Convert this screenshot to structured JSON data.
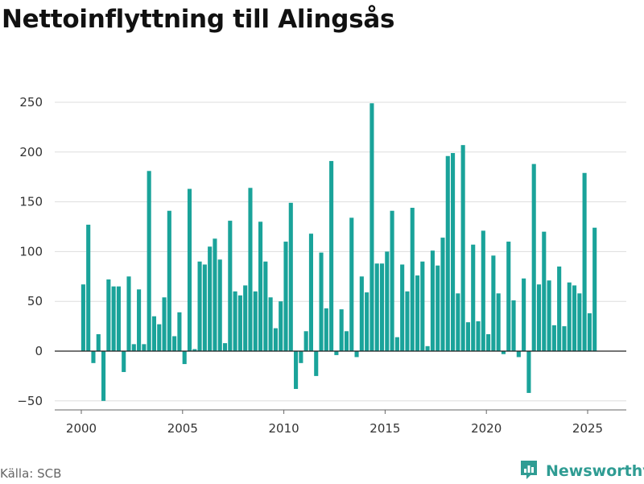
{
  "title": "Nettoinflyttning till Alingsås",
  "source": "Källa: SCB",
  "brand": {
    "name": "Newsworthy",
    "icon": "newsworthy-logo-icon",
    "color": "#2f9c93"
  },
  "chart_data": {
    "type": "bar",
    "title": "Nettoinflyttning till Alingsås",
    "xlabel": "",
    "ylabel": "",
    "frequency": "quarterly",
    "x_start": "2000 Q1",
    "x_ticks": [
      "2000",
      "2005",
      "2010",
      "2015",
      "2020",
      "2025"
    ],
    "y_ticks": [
      -50,
      0,
      50,
      100,
      150,
      200,
      250
    ],
    "xlim": [
      2000,
      2025.75
    ],
    "ylim": [
      -55,
      260
    ],
    "grid": true,
    "legend": "none",
    "color": "#1aa39a",
    "values": [
      67,
      127,
      -12,
      17,
      -50,
      72,
      65,
      65,
      -21,
      75,
      7,
      62,
      7,
      181,
      35,
      27,
      54,
      141,
      15,
      39,
      -13,
      163,
      2,
      90,
      87,
      105,
      113,
      92,
      8,
      131,
      60,
      56,
      66,
      164,
      60,
      130,
      90,
      54,
      23,
      50,
      110,
      149,
      -38,
      -12,
      20,
      118,
      -25,
      99,
      43,
      191,
      -4,
      42,
      20,
      134,
      -6,
      75,
      59,
      249,
      88,
      88,
      100,
      141,
      14,
      87,
      60,
      144,
      76,
      90,
      5,
      101,
      86,
      114,
      196,
      199,
      58,
      207,
      29,
      107,
      30,
      121,
      17,
      96,
      58,
      -3,
      110,
      51,
      -6,
      73,
      -42,
      188,
      67,
      120,
      71,
      26,
      85,
      25,
      69,
      66,
      58,
      179,
      38,
      124
    ]
  }
}
